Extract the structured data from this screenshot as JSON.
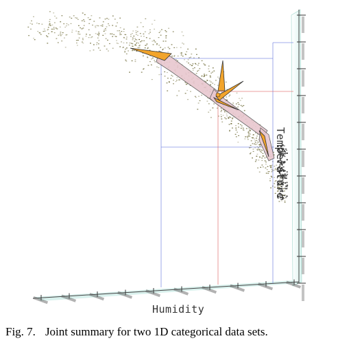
{
  "figure": {
    "xlabel": "Humidity",
    "ylabel": "Temperature",
    "caption_label": "Fig. 7.",
    "caption_text": "Joint summary for two 1D categorical data sets."
  },
  "colors": {
    "point_cloud": "#5e5a20",
    "band_fill": "#e8c7cf",
    "band_stroke": "#555555",
    "glyph_fill": "#f2a42b",
    "guide_blue": "#6f7fe0",
    "guide_red": "#e06a6a",
    "axis_wall": "#b8e8e0"
  }
}
